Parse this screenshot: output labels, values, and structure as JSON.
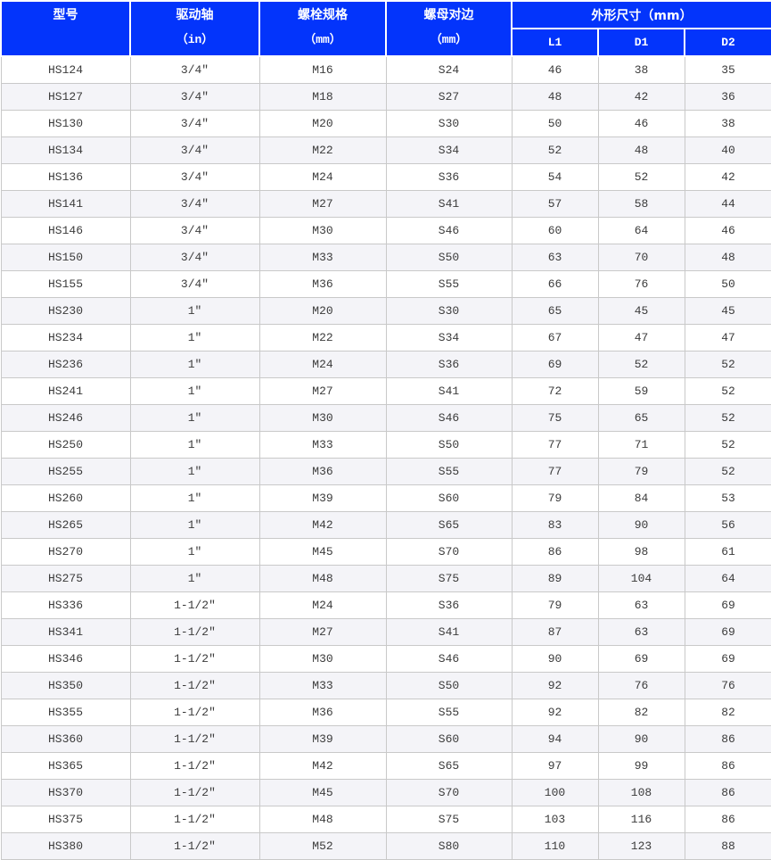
{
  "colors": {
    "header_bg": "#0334FB",
    "header_text": "#FFFFFF",
    "body_text": "#3B3B3B",
    "alt_row_bg": "#F4F4F8",
    "grid_border": "#C9C9C9",
    "header_divider": "#FFFFFF"
  },
  "header": {
    "columns": [
      {
        "title": "型号",
        "unit": ""
      },
      {
        "title": "驱动轴",
        "unit": "（in）"
      },
      {
        "title": "螺栓规格",
        "unit": "（mm）"
      },
      {
        "title": "螺母对边",
        "unit": "（mm）"
      }
    ],
    "group": {
      "title": "外形尺寸（mm）",
      "subs": [
        "L1",
        "D1",
        "D2"
      ]
    }
  },
  "chart_data": {
    "type": "table",
    "columns": [
      "型号",
      "驱动轴（in）",
      "螺栓规格（mm）",
      "螺母对边（mm）",
      "外形尺寸L1（mm）",
      "外形尺寸D1（mm）",
      "外形尺寸D2（mm）"
    ],
    "column_keys": [
      "model",
      "drive-shaft",
      "bolt-spec",
      "nut-flats",
      "l1",
      "d1",
      "d2"
    ],
    "rows": [
      [
        "HS124",
        "3/4″",
        "M16",
        "S24",
        46,
        38,
        35
      ],
      [
        "HS127",
        "3/4″",
        "M18",
        "S27",
        48,
        42,
        36
      ],
      [
        "HS130",
        "3/4″",
        "M20",
        "S30",
        50,
        46,
        38
      ],
      [
        "HS134",
        "3/4″",
        "M22",
        "S34",
        52,
        48,
        40
      ],
      [
        "HS136",
        "3/4″",
        "M24",
        "S36",
        54,
        52,
        42
      ],
      [
        "HS141",
        "3/4″",
        "M27",
        "S41",
        57,
        58,
        44
      ],
      [
        "HS146",
        "3/4″",
        "M30",
        "S46",
        60,
        64,
        46
      ],
      [
        "HS150",
        "3/4″",
        "M33",
        "S50",
        63,
        70,
        48
      ],
      [
        "HS155",
        "3/4″",
        "M36",
        "S55",
        66,
        76,
        50
      ],
      [
        "HS230",
        "1″",
        "M20",
        "S30",
        65,
        45,
        45
      ],
      [
        "HS234",
        "1″",
        "M22",
        "S34",
        67,
        47,
        47
      ],
      [
        "HS236",
        "1″",
        "M24",
        "S36",
        69,
        52,
        52
      ],
      [
        "HS241",
        "1″",
        "M27",
        "S41",
        72,
        59,
        52
      ],
      [
        "HS246",
        "1″",
        "M30",
        "S46",
        75,
        65,
        52
      ],
      [
        "HS250",
        "1″",
        "M33",
        "S50",
        77,
        71,
        52
      ],
      [
        "HS255",
        "1″",
        "M36",
        "S55",
        77,
        79,
        52
      ],
      [
        "HS260",
        "1″",
        "M39",
        "S60",
        79,
        84,
        53
      ],
      [
        "HS265",
        "1″",
        "M42",
        "S65",
        83,
        90,
        56
      ],
      [
        "HS270",
        "1″",
        "M45",
        "S70",
        86,
        98,
        61
      ],
      [
        "HS275",
        "1″",
        "M48",
        "S75",
        89,
        104,
        64
      ],
      [
        "HS336",
        "1-1/2″",
        "M24",
        "S36",
        79,
        63,
        69
      ],
      [
        "HS341",
        "1-1/2″",
        "M27",
        "S41",
        87,
        63,
        69
      ],
      [
        "HS346",
        "1-1/2″",
        "M30",
        "S46",
        90,
        69,
        69
      ],
      [
        "HS350",
        "1-1/2″",
        "M33",
        "S50",
        92,
        76,
        76
      ],
      [
        "HS355",
        "1-1/2″",
        "M36",
        "S55",
        92,
        82,
        82
      ],
      [
        "HS360",
        "1-1/2″",
        "M39",
        "S60",
        94,
        90,
        86
      ],
      [
        "HS365",
        "1-1/2″",
        "M42",
        "S65",
        97,
        99,
        86
      ],
      [
        "HS370",
        "1-1/2″",
        "M45",
        "S70",
        100,
        108,
        86
      ],
      [
        "HS375",
        "1-1/2″",
        "M48",
        "S75",
        103,
        116,
        86
      ],
      [
        "HS380",
        "1-1/2″",
        "M52",
        "S80",
        110,
        123,
        88
      ]
    ]
  }
}
